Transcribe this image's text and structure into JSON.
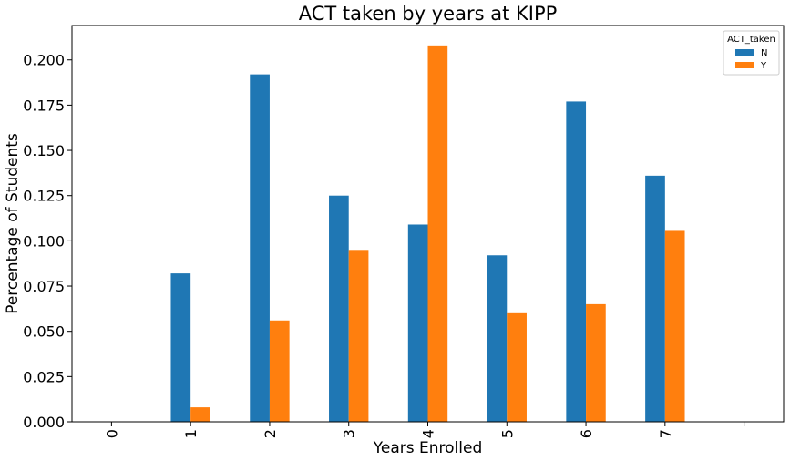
{
  "chart_data": {
    "type": "bar",
    "title": "ACT taken by years at KIPP",
    "xlabel": "Years Enrolled",
    "ylabel": "Percentage of Students",
    "categories": [
      "0",
      "1",
      "2",
      "3",
      "4",
      "5",
      "6",
      "7"
    ],
    "extra_tick_slots": 1,
    "series": [
      {
        "name": "N",
        "color": "#1f77b4",
        "values": [
          0,
          0.082,
          0.192,
          0.125,
          0.109,
          0.092,
          0.177,
          0.136
        ]
      },
      {
        "name": "Y",
        "color": "#ff7f0e",
        "values": [
          0,
          0.008,
          0.056,
          0.095,
          0.208,
          0.06,
          0.065,
          0.106
        ]
      }
    ],
    "ylim": [
      0,
      0.219
    ],
    "yticks": [
      "0.000",
      "0.025",
      "0.050",
      "0.075",
      "0.100",
      "0.125",
      "0.150",
      "0.175",
      "0.200"
    ],
    "grid": false,
    "legend": {
      "title": "ACT_taken",
      "placement": "top-right"
    }
  }
}
